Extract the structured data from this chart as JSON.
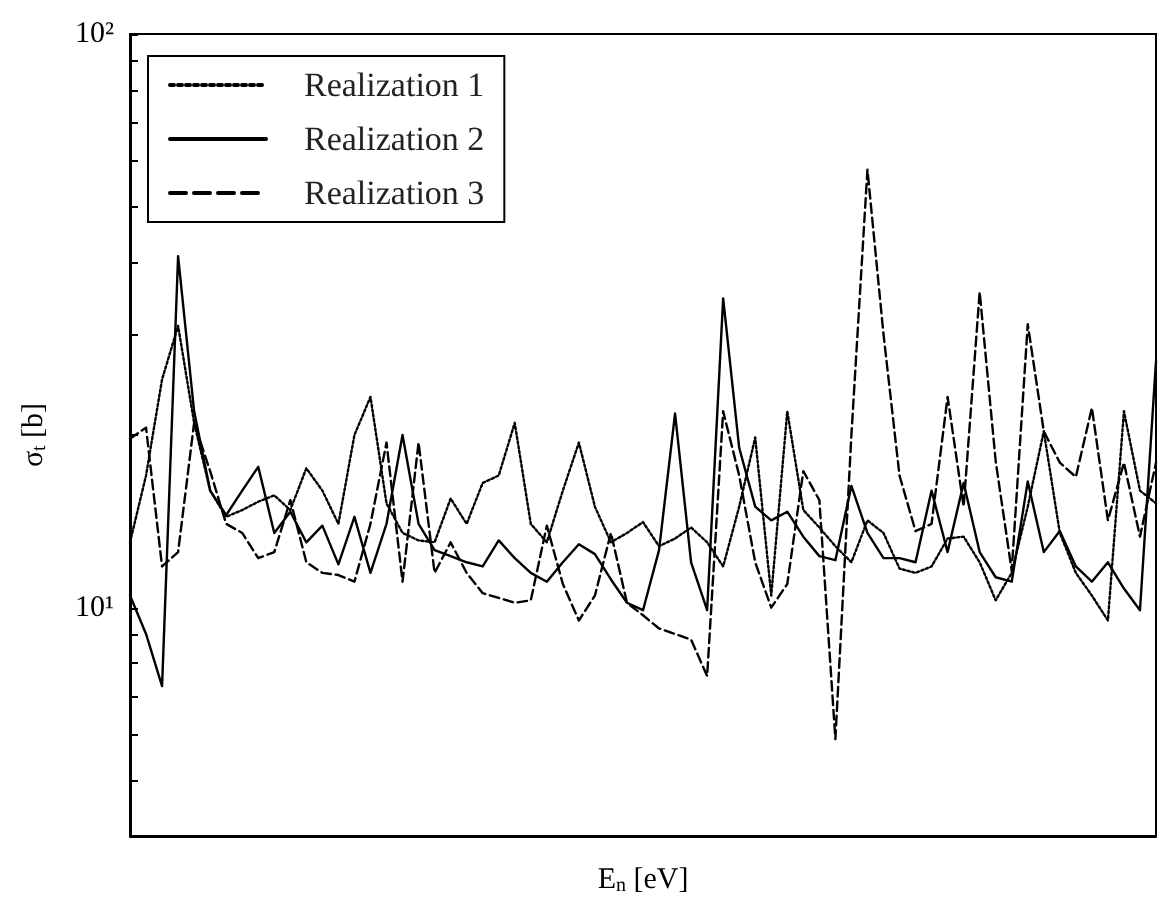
{
  "chart_data": {
    "type": "line",
    "xlabel": "E$_{n}$ [eV]",
    "ylabel": "σ$_{t}$ [b]",
    "categories": [
      null,
      null,
      null,
      null,
      null,
      null,
      null,
      null,
      null,
      null,
      null,
      null,
      null,
      null,
      null,
      null,
      null,
      null,
      null,
      null,
      null,
      null,
      null,
      null,
      null,
      null,
      null,
      null,
      null,
      null,
      null,
      null,
      null,
      null,
      null,
      null,
      null,
      null,
      null,
      null,
      null,
      null,
      null,
      null,
      null,
      null,
      null,
      null,
      null,
      null,
      null,
      null,
      null,
      null,
      null,
      null,
      null,
      null,
      null,
      null,
      null,
      null,
      null,
      null,
      null
    ],
    "series": [
      {
        "name": "Realization 1",
        "color": "#000000",
        "line_style": "dotted",
        "values": [
          13,
          17,
          25,
          31,
          21,
          16,
          14.4,
          14.8,
          15.3,
          15.7,
          14.8,
          17.5,
          16,
          14,
          20,
          23.3,
          15.2,
          13.5,
          13.1,
          13,
          15.5,
          14,
          16.5,
          17,
          21,
          14,
          13,
          16,
          19.4,
          15,
          13,
          13.5,
          14.1,
          12.8,
          13.2,
          13.8,
          13,
          11.8,
          15,
          19.8,
          10.5,
          22,
          14.8,
          13.8,
          12.8,
          12,
          14.2,
          13.5,
          11.7,
          11.5,
          11.8,
          13.2,
          13.3,
          12,
          10.3,
          11.5,
          15,
          20.3,
          13.5,
          11.5,
          10.5,
          9.5,
          22,
          16,
          15.2
        ]
      },
      {
        "name": "Realization 2",
        "color": "#000000",
        "line_style": "solid",
        "values": [
          10.5,
          9.0,
          7.3,
          41,
          22,
          16,
          14.5,
          16,
          17.6,
          13.5,
          14.7,
          13.0,
          13.9,
          11.9,
          14.4,
          11.5,
          14,
          20,
          14,
          12.6,
          12.3,
          12.0,
          11.8,
          13.1,
          12.2,
          11.5,
          11.1,
          12.0,
          12.9,
          12.4,
          11.2,
          10.2,
          9.9,
          12.6,
          21.8,
          12,
          9.9,
          34.6,
          19,
          15,
          14.2,
          14.7,
          13.3,
          12.3,
          12.1,
          16.3,
          13.5,
          12.2,
          12.2,
          12.0,
          16.0,
          12.5,
          16.5,
          12.5,
          11.3,
          11.1,
          16.6,
          12.5,
          13.6,
          11.8,
          11.1,
          12.0,
          10.8,
          9.9,
          26.9
        ]
      },
      {
        "name": "Realization 3",
        "color": "#000000",
        "line_style": "dashed",
        "values": [
          19.7,
          20.6,
          11.8,
          12.5,
          21,
          17.3,
          14,
          13.5,
          12.2,
          12.5,
          15.4,
          12,
          11.5,
          11.4,
          11.1,
          14,
          19.4,
          11.1,
          19.4,
          11.5,
          13.0,
          11.5,
          10.6,
          10.4,
          10.2,
          10.3,
          13.9,
          11,
          9.5,
          10.5,
          13.5,
          10.2,
          9.7,
          9.2,
          9.0,
          8.8,
          7.6,
          22,
          17,
          12,
          10,
          11,
          17.3,
          15.4,
          5.9,
          20,
          58,
          30,
          17,
          13.6,
          14,
          23.3,
          15,
          35.5,
          18,
          11.6,
          31.2,
          20.3,
          17.9,
          16.9,
          22.3,
          14.2,
          17.9,
          13.3,
          17.9
        ]
      }
    ],
    "log": true,
    "ylim": [
      4,
      100
    ],
    "yticks": [
      {
        "value": 5,
        "label": null
      },
      {
        "value": 6,
        "label": null
      },
      {
        "value": 7,
        "label": null
      },
      {
        "value": 8,
        "label": null
      },
      {
        "value": 9,
        "label": null
      },
      {
        "value": 10,
        "label": "10¹"
      },
      {
        "value": 20,
        "label": null
      },
      {
        "value": 30,
        "label": null
      },
      {
        "value": 40,
        "label": null
      },
      {
        "value": 50,
        "label": null
      },
      {
        "value": 60,
        "label": null
      },
      {
        "value": 70,
        "label": null
      },
      {
        "value": 80,
        "label": null
      },
      {
        "value": 90,
        "label": null
      },
      {
        "value": 100,
        "label": "10²"
      }
    ],
    "tick_labels": "y",
    "grid": false,
    "legend": "top left"
  }
}
